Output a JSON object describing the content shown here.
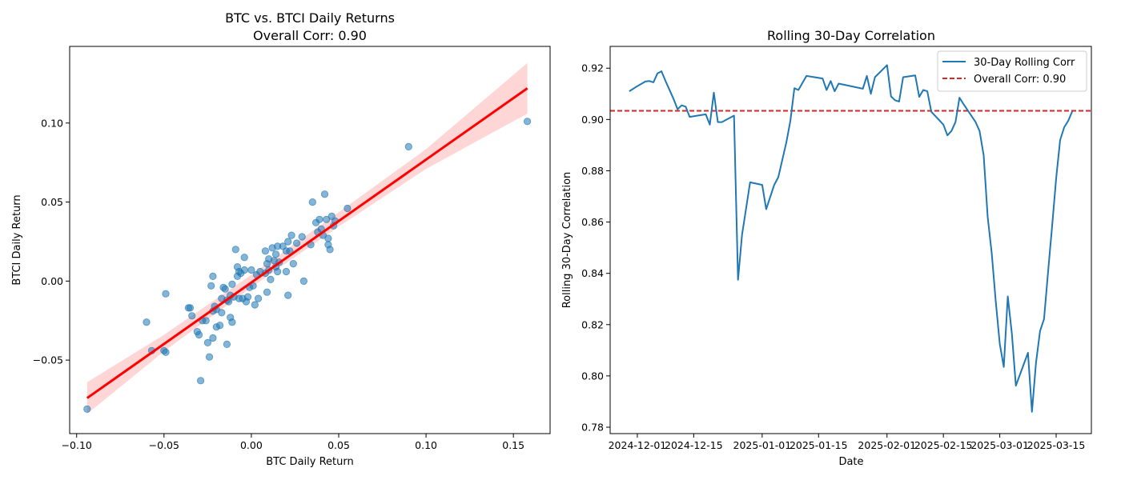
{
  "chart_data": [
    {
      "type": "scatter",
      "title": "BTC vs. BTCI Daily Returns",
      "subtitle": "Overall Corr: 0.90",
      "xlabel": "BTC Daily Return",
      "ylabel": "BTCI Daily Return",
      "xlim": [
        -0.104,
        0.171
      ],
      "ylim": [
        -0.0965,
        0.1485
      ],
      "xticks": [
        -0.1,
        -0.05,
        0.0,
        0.05,
        0.1,
        0.15
      ],
      "xtick_labels": [
        "−0.10",
        "−0.05",
        "0.00",
        "0.05",
        "0.10",
        "0.15"
      ],
      "yticks": [
        -0.05,
        0.0,
        0.05,
        0.1
      ],
      "ytick_labels": [
        "−0.05",
        "0.00",
        "0.05",
        "0.10"
      ],
      "grid": false,
      "point_color": "#1f77b4",
      "fit_color": "#ff0000",
      "band_color": "#ffcccc",
      "fit_line": {
        "x": [
          -0.094,
          0.158
        ],
        "y": [
          -0.074,
          0.122
        ]
      },
      "confidence_band": {
        "x": [
          -0.094,
          -0.05,
          0.0,
          0.05,
          0.1,
          0.158
        ],
        "upper": [
          -0.064,
          -0.034,
          0.004,
          0.0435,
          0.0835,
          0.138
        ],
        "lower": [
          -0.084,
          -0.0445,
          -0.004,
          0.0345,
          0.071,
          0.106
        ]
      },
      "points": [
        [
          -0.094,
          -0.081
        ],
        [
          -0.06,
          -0.026
        ],
        [
          -0.057,
          -0.044
        ],
        [
          -0.05,
          -0.044
        ],
        [
          -0.049,
          -0.045
        ],
        [
          -0.049,
          -0.008
        ],
        [
          -0.036,
          -0.017
        ],
        [
          -0.035,
          -0.017
        ],
        [
          -0.034,
          -0.022
        ],
        [
          -0.031,
          -0.032
        ],
        [
          -0.03,
          -0.034
        ],
        [
          -0.029,
          -0.063
        ],
        [
          -0.028,
          -0.025
        ],
        [
          -0.026,
          -0.025
        ],
        [
          -0.025,
          -0.039
        ],
        [
          -0.024,
          -0.048
        ],
        [
          -0.023,
          -0.003
        ],
        [
          -0.022,
          -0.036
        ],
        [
          -0.022,
          0.003
        ],
        [
          -0.022,
          -0.019
        ],
        [
          -0.021,
          -0.016
        ],
        [
          -0.02,
          -0.018
        ],
        [
          -0.02,
          -0.029
        ],
        [
          -0.018,
          -0.028
        ],
        [
          -0.017,
          -0.011
        ],
        [
          -0.017,
          -0.02
        ],
        [
          -0.016,
          -0.004
        ],
        [
          -0.015,
          -0.005
        ],
        [
          -0.014,
          -0.012
        ],
        [
          -0.014,
          -0.04
        ],
        [
          -0.013,
          -0.013
        ],
        [
          -0.012,
          -0.009
        ],
        [
          -0.012,
          -0.023
        ],
        [
          -0.011,
          -0.026
        ],
        [
          -0.011,
          -0.002
        ],
        [
          -0.01,
          -0.01
        ],
        [
          -0.009,
          0.02
        ],
        [
          -0.008,
          0.009
        ],
        [
          -0.008,
          0.003
        ],
        [
          -0.007,
          -0.011
        ],
        [
          -0.007,
          0.006
        ],
        [
          -0.006,
          0.005
        ],
        [
          -0.005,
          -0.011
        ],
        [
          -0.004,
          0.015
        ],
        [
          -0.004,
          0.007
        ],
        [
          -0.003,
          -0.013
        ],
        [
          -0.002,
          -0.01
        ],
        [
          -0.001,
          -0.004
        ],
        [
          0.0,
          0.007
        ],
        [
          0.001,
          -0.003
        ],
        [
          0.002,
          -0.015
        ],
        [
          0.003,
          0.004
        ],
        [
          0.004,
          -0.011
        ],
        [
          0.005,
          0.006
        ],
        [
          0.008,
          0.005
        ],
        [
          0.008,
          0.019
        ],
        [
          0.009,
          -0.007
        ],
        [
          0.009,
          0.011
        ],
        [
          0.01,
          0.014
        ],
        [
          0.01,
          0.007
        ],
        [
          0.011,
          0.001
        ],
        [
          0.012,
          0.021
        ],
        [
          0.013,
          0.013
        ],
        [
          0.014,
          0.009
        ],
        [
          0.014,
          0.017
        ],
        [
          0.015,
          0.022
        ],
        [
          0.015,
          0.006
        ],
        [
          0.016,
          0.012
        ],
        [
          0.018,
          0.022
        ],
        [
          0.02,
          0.006
        ],
        [
          0.02,
          0.019
        ],
        [
          0.021,
          0.025
        ],
        [
          0.021,
          -0.009
        ],
        [
          0.022,
          0.019
        ],
        [
          0.023,
          0.029
        ],
        [
          0.024,
          0.011
        ],
        [
          0.026,
          0.024
        ],
        [
          0.029,
          0.028
        ],
        [
          0.03,
          0.0
        ],
        [
          0.034,
          0.023
        ],
        [
          0.035,
          0.05
        ],
        [
          0.037,
          0.037
        ],
        [
          0.038,
          0.031
        ],
        [
          0.039,
          0.039
        ],
        [
          0.04,
          0.033
        ],
        [
          0.041,
          0.029
        ],
        [
          0.042,
          0.055
        ],
        [
          0.043,
          0.039
        ],
        [
          0.044,
          0.027
        ],
        [
          0.044,
          0.023
        ],
        [
          0.045,
          0.02
        ],
        [
          0.046,
          0.041
        ],
        [
          0.047,
          0.035
        ],
        [
          0.048,
          0.038
        ],
        [
          0.055,
          0.046
        ],
        [
          0.09,
          0.085
        ],
        [
          0.158,
          0.101
        ]
      ]
    },
    {
      "type": "line",
      "title": "Rolling 30-Day Correlation",
      "xlabel": "Date",
      "ylabel": "Rolling 30-Day Correlation",
      "x_start": "2024-11-29",
      "ylim": [
        0.7775,
        0.9285
      ],
      "xticks": [
        "2024-12-01",
        "2024-12-15",
        "2025-01-01",
        "2025-01-15",
        "2025-02-01",
        "2025-02-15",
        "2025-03-01",
        "2025-03-15"
      ],
      "xtick_labels": [
        "2024-12-01",
        "2024-12-15",
        "2025-01-01",
        "2025-01-15",
        "2025-02-01",
        "2025-02-15",
        "2025-03-01",
        "2025-03-15"
      ],
      "yticks": [
        0.78,
        0.8,
        0.82,
        0.84,
        0.86,
        0.88,
        0.9,
        0.92
      ],
      "ytick_labels": [
        "0.78",
        "0.80",
        "0.82",
        "0.84",
        "0.86",
        "0.88",
        "0.90",
        "0.92"
      ],
      "grid": false,
      "legend_position": "top-right",
      "legend": [
        "30-Day Rolling Corr",
        "Overall Corr: 0.90"
      ],
      "hline": 0.9034,
      "series": [
        {
          "name": "30-Day Rolling Corr",
          "color": "#1f77b4",
          "points": [
            [
              "2024-11-29",
              0.911
            ],
            [
              "2024-12-01",
              0.913
            ],
            [
              "2024-12-03",
              0.9148
            ],
            [
              "2024-12-04",
              0.915
            ],
            [
              "2024-12-05",
              0.9145
            ],
            [
              "2024-12-06",
              0.918
            ],
            [
              "2024-12-07",
              0.9188
            ],
            [
              "2024-12-08",
              0.915
            ],
            [
              "2024-12-10",
              0.908
            ],
            [
              "2024-12-11",
              0.904
            ],
            [
              "2024-12-12",
              0.9055
            ],
            [
              "2024-12-13",
              0.905
            ],
            [
              "2024-12-14",
              0.901
            ],
            [
              "2024-12-18",
              0.902
            ],
            [
              "2024-12-19",
              0.898
            ],
            [
              "2024-12-20",
              0.9105
            ],
            [
              "2024-12-21",
              0.899
            ],
            [
              "2024-12-22",
              0.899
            ],
            [
              "2024-12-25",
              0.9015
            ],
            [
              "2024-12-26",
              0.8375
            ],
            [
              "2024-12-27",
              0.855
            ],
            [
              "2024-12-29",
              0.8755
            ],
            [
              "2025-01-01",
              0.8745
            ],
            [
              "2025-01-02",
              0.865
            ],
            [
              "2025-01-04",
              0.8745
            ],
            [
              "2025-01-05",
              0.8775
            ],
            [
              "2025-01-07",
              0.891
            ],
            [
              "2025-01-08",
              0.8995
            ],
            [
              "2025-01-09",
              0.9122
            ],
            [
              "2025-01-10",
              0.9115
            ],
            [
              "2025-01-12",
              0.917
            ],
            [
              "2025-01-16",
              0.916
            ],
            [
              "2025-01-17",
              0.9115
            ],
            [
              "2025-01-18",
              0.915
            ],
            [
              "2025-01-19",
              0.911
            ],
            [
              "2025-01-20",
              0.914
            ],
            [
              "2025-01-26",
              0.912
            ],
            [
              "2025-01-27",
              0.917
            ],
            [
              "2025-01-28",
              0.91
            ],
            [
              "2025-01-29",
              0.9165
            ],
            [
              "2025-02-01",
              0.9212
            ],
            [
              "2025-02-02",
              0.909
            ],
            [
              "2025-02-03",
              0.9075
            ],
            [
              "2025-02-04",
              0.907
            ],
            [
              "2025-02-05",
              0.9165
            ],
            [
              "2025-02-08",
              0.9172
            ],
            [
              "2025-02-09",
              0.9088
            ],
            [
              "2025-02-10",
              0.9115
            ],
            [
              "2025-02-11",
              0.911
            ],
            [
              "2025-02-12",
              0.903
            ],
            [
              "2025-02-15",
              0.898
            ],
            [
              "2025-02-16",
              0.8938
            ],
            [
              "2025-02-17",
              0.8955
            ],
            [
              "2025-02-18",
              0.899
            ],
            [
              "2025-02-19",
              0.9085
            ],
            [
              "2025-02-20",
              0.906
            ],
            [
              "2025-02-23",
              0.899
            ],
            [
              "2025-02-24",
              0.8955
            ],
            [
              "2025-02-25",
              0.886
            ],
            [
              "2025-02-26",
              0.862
            ],
            [
              "2025-02-27",
              0.848
            ],
            [
              "2025-02-28",
              0.829
            ],
            [
              "2025-03-01",
              0.8125
            ],
            [
              "2025-03-02",
              0.8035
            ],
            [
              "2025-03-03",
              0.831
            ],
            [
              "2025-03-04",
              0.8165
            ],
            [
              "2025-03-05",
              0.7962
            ],
            [
              "2025-03-08",
              0.809
            ],
            [
              "2025-03-09",
              0.786
            ],
            [
              "2025-03-10",
              0.805
            ],
            [
              "2025-03-11",
              0.8175
            ],
            [
              "2025-03-12",
              0.8222
            ],
            [
              "2025-03-13",
              0.8405
            ],
            [
              "2025-03-14",
              0.8585
            ],
            [
              "2025-03-15",
              0.877
            ],
            [
              "2025-03-16",
              0.892
            ],
            [
              "2025-03-17",
              0.897
            ],
            [
              "2025-03-18",
              0.8995
            ],
            [
              "2025-03-19",
              0.9032
            ]
          ]
        },
        {
          "name": "Overall Corr: 0.90",
          "color": "#d62728",
          "dashed": true
        }
      ]
    }
  ]
}
